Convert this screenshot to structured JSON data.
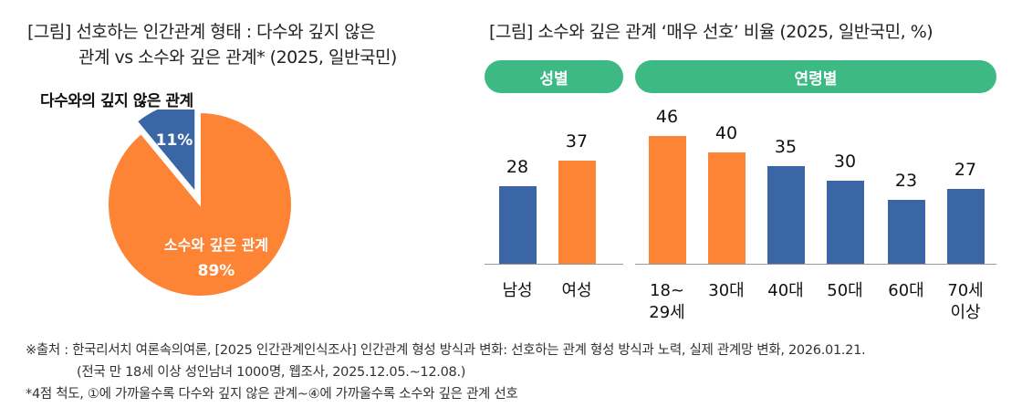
{
  "colors": {
    "orange": "#fd8434",
    "blue": "#3a66a6",
    "green": "#3dba84"
  },
  "left_title": {
    "line1": "[그림] 선호하는 인간관계 형태 : 다수와 깊지 않은",
    "line2": "관계 vs 소수와 깊은 관계* (2025, 일반국민)"
  },
  "right_title": "[그림] 소수와 깊은 관계 ‘매우 선호’ 비율 (2025, 일반국민, %)",
  "chart_data": [
    {
      "type": "pie",
      "title": "다수와의 깊지 않은 관계",
      "slices": [
        {
          "label": "다수와의 깊지 않은 관계",
          "display": "11%",
          "value": 11,
          "color": "#3a66a6",
          "exploded": true
        },
        {
          "label": "소수와 깊은 관계",
          "display": "89%",
          "value": 89,
          "color": "#fd8434",
          "exploded": false
        }
      ]
    },
    {
      "type": "bar",
      "groups": [
        "성별",
        "연령별"
      ],
      "categories": [
        "남성",
        "여성",
        "18~\n29세",
        "30대",
        "40대",
        "50대",
        "60대",
        "70세\n이상"
      ],
      "values": [
        28,
        37,
        46,
        40,
        35,
        30,
        23,
        27
      ],
      "highlight": [
        false,
        true,
        true,
        true,
        false,
        false,
        false,
        false
      ],
      "ylim": [
        0,
        50
      ]
    }
  ],
  "footnotes": {
    "source": "※출처 : 한국리서치 여론속의여론, [2025 인간관계인식조사] 인간관계 형성 방식과 변화: 선호하는 관계 형성 방식과 노력, 실제 관계망 변화, 2026.01.21.",
    "detail": "(전국 만 18세 이상 성인남녀 1000명, 웹조사, 2025.12.05.~12.08.)",
    "scale": "*4점 척도, ①에 가까울수록 다수와 깊지 않은 관계~④에 가까울수록 소수와 깊은 관계 선호"
  }
}
